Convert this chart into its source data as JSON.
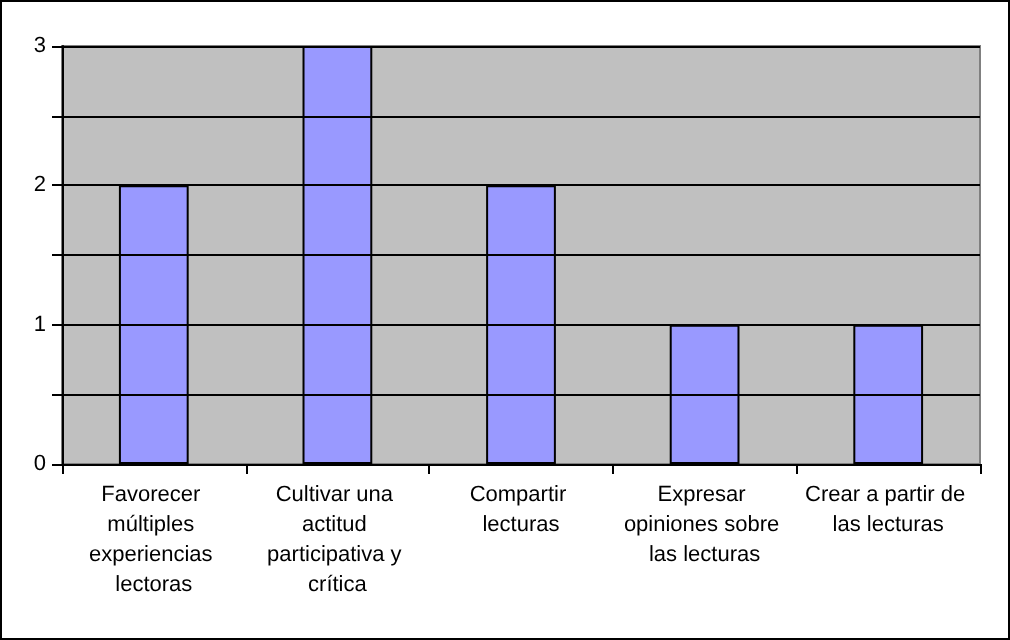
{
  "chart_data": {
    "type": "bar",
    "categories": [
      "Favorecer múltiples experiencias lectoras",
      "Cultivar una actitud participativa y crítica",
      "Compartir lecturas",
      "Expresar opiniones sobre las lecturas",
      "Crear a partir de las lecturas"
    ],
    "values": [
      2,
      3,
      2,
      1,
      1
    ],
    "color": "#9999ff",
    "ylim": [
      0,
      3
    ],
    "yticks": [
      0,
      {
        "value": 0.5,
        "label": null
      },
      1,
      {
        "value": 1.5,
        "label": null
      },
      2,
      {
        "value": 2.5,
        "label": null
      },
      3
    ],
    "grid": "y"
  }
}
